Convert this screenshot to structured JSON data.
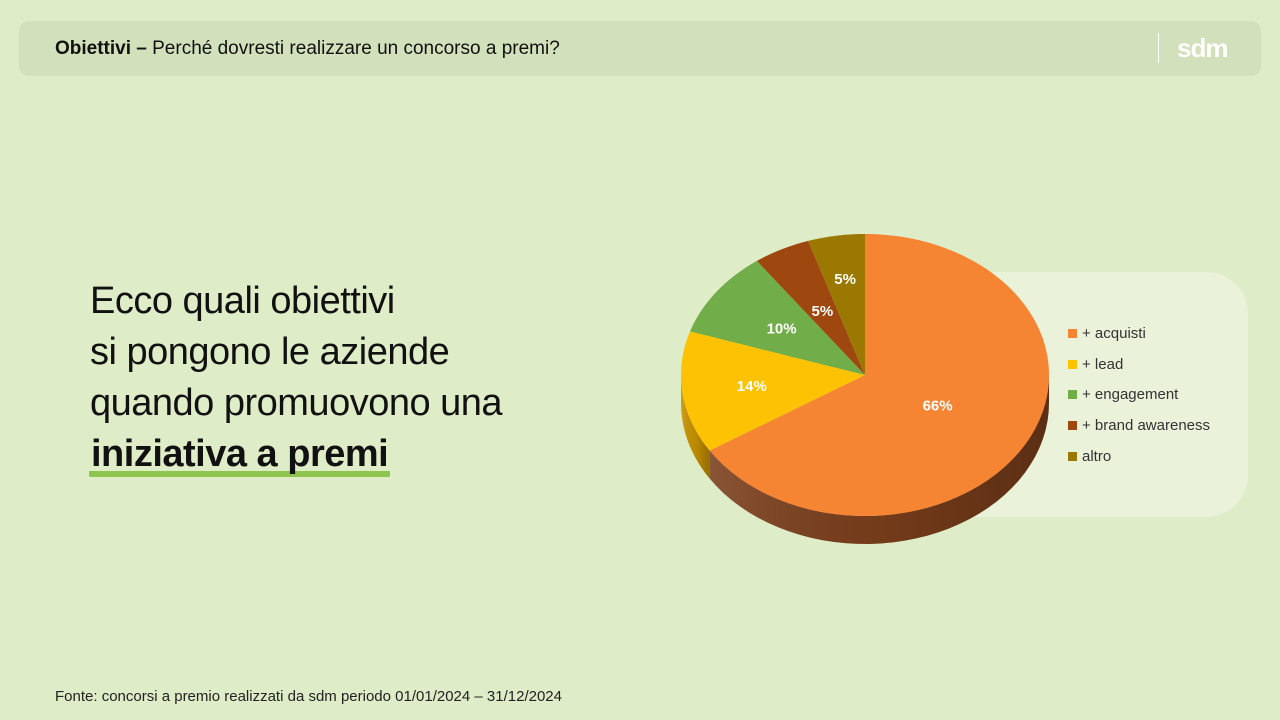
{
  "header": {
    "title_bold": "Obiettivi –",
    "title_rest": " Perché dovresti realizzare un concorso a premi?",
    "logo": "sdm"
  },
  "headline": {
    "line1": "Ecco quali obiettivi",
    "line2": "si pongono le aziende",
    "line3": "quando promuovono una",
    "highlight": "iniziativa a premi"
  },
  "chart_data": {
    "type": "pie",
    "categories": [
      "+ acquisti",
      "+ lead",
      "+ engagement",
      "+ brand awareness",
      "altro"
    ],
    "values": [
      66,
      14,
      10,
      5,
      5
    ],
    "labels": [
      "66%",
      "14%",
      "10%",
      "5%",
      "5%"
    ],
    "colors": [
      "#f58433",
      "#fdc203",
      "#71ad48",
      "#9e4810",
      "#9b7801"
    ],
    "side_colors": [
      "#7a3e1b",
      "#c79200",
      "#4e7c2f",
      "#6d3009",
      "#6b5301"
    ],
    "legend_position": "right",
    "title": ""
  },
  "footer": {
    "source": "Fonte: concorsi a premio realizzati da sdm periodo 01/01/2024 – 31/12/2024"
  }
}
